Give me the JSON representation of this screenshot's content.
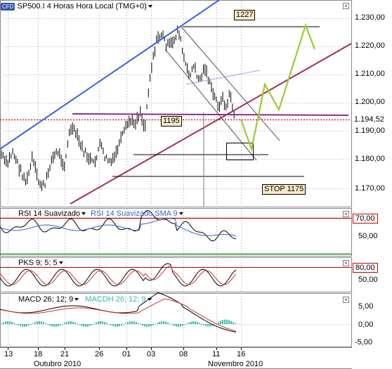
{
  "header": {
    "logo_text": "CFD",
    "instrument": "SP500.I 4 Horas Hora Local (TMG+0)",
    "close_glyph": "×"
  },
  "price_axis": {
    "ticks": [
      "1.230,00",
      "1.220,00",
      "1.210,00",
      "1.200,00",
      "1.190,00",
      "1.180,00",
      "1.170,00"
    ],
    "current_price": "1.194,52"
  },
  "annotations": {
    "target_label": "1227",
    "level_label": "1195",
    "stop_label": "STOP 1175"
  },
  "rsi_panel": {
    "title": "RSI 14 Suavizado",
    "overlay_title": "RSI 14 Suavizado SMA 9",
    "level_badge": "70,00",
    "tick": "50,00",
    "close_glyph": "×"
  },
  "pks_panel": {
    "title": "PKS 9; 5; 5",
    "level_badge": "80,00",
    "tick": "50,00",
    "close_glyph": "×"
  },
  "macd_panel": {
    "title": "MACD 26; 12; 9",
    "overlay_title": "MACDH 26; 12; 9",
    "ticks": [
      "5,00",
      "0,00",
      "-5,00"
    ],
    "close_glyph": "×"
  },
  "time_axis": {
    "days": [
      "13",
      "18",
      "21",
      "26",
      "01",
      "03",
      "08",
      "11",
      "16"
    ],
    "months": [
      "Outubro 2010",
      "Novembro 2010"
    ]
  },
  "colors": {
    "price_bars": "#000000",
    "channel_blue": "#3366dd",
    "trend_maroon": "#a03050",
    "horizontal_purple": "#8a2e8a",
    "projection_green": "#99cc33",
    "current_price_red": "#cc0000",
    "rsi_line": "#000000",
    "rsi_sma": "#3366cc",
    "level_red": "#cc0000",
    "level_green": "#228822",
    "macd_histogram": "#33bbaa"
  }
}
